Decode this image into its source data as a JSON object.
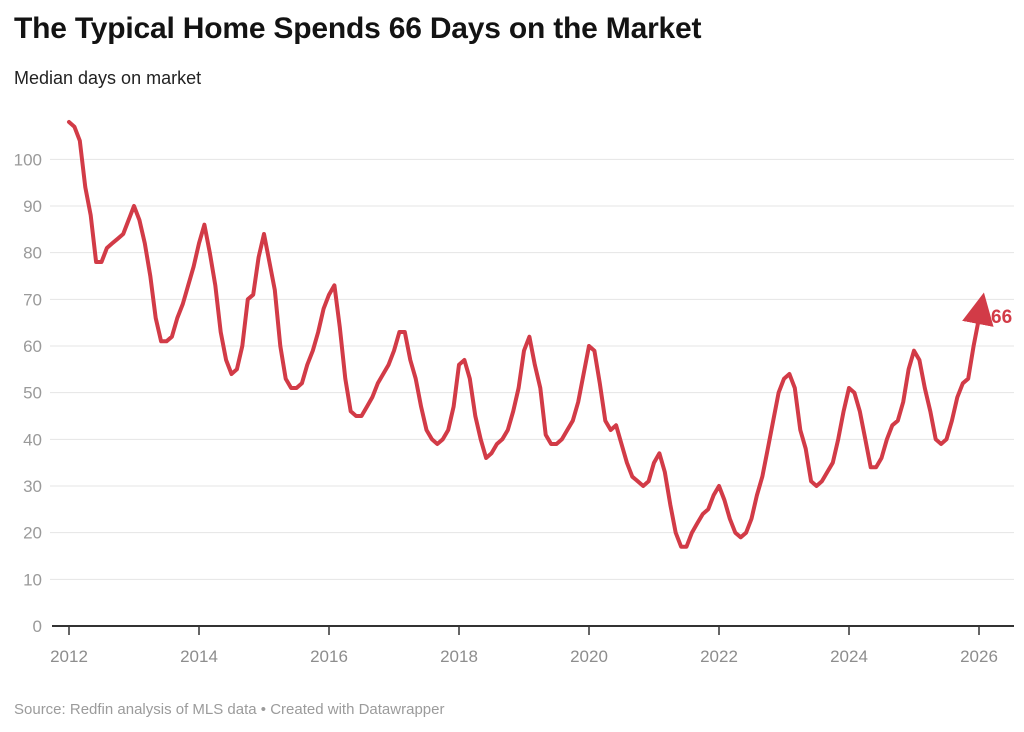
{
  "header": {
    "title": "The Typical Home Spends 66 Days on the Market",
    "subtitle": "Median days on market"
  },
  "footer": {
    "text": "Source: Redfin analysis of MLS data • Created with Datawrapper"
  },
  "chart_data": {
    "type": "line",
    "title": "The Typical Home Spends 66 Days on the Market",
    "ylabel": "Median days on market",
    "frequency": "monthly",
    "start": "2012-01",
    "end": "2026-01",
    "series": [
      {
        "name": "Median days on market",
        "values": [
          108,
          107,
          104,
          94,
          88,
          78,
          78,
          81,
          82,
          83,
          84,
          87,
          90,
          87,
          82,
          75,
          66,
          61,
          61,
          62,
          66,
          69,
          73,
          77,
          82,
          86,
          80,
          73,
          63,
          57,
          54,
          55,
          60,
          70,
          71,
          79,
          84,
          78,
          72,
          60,
          53,
          51,
          51,
          52,
          56,
          59,
          63,
          68,
          71,
          73,
          64,
          53,
          46,
          45,
          45,
          47,
          49,
          52,
          54,
          56,
          59,
          63,
          63,
          57,
          53,
          47,
          42,
          40,
          39,
          40,
          42,
          47,
          56,
          57,
          53,
          45,
          40,
          36,
          37,
          39,
          40,
          42,
          46,
          51,
          59,
          62,
          56,
          51,
          41,
          39,
          39,
          40,
          42,
          44,
          48,
          54,
          60,
          59,
          52,
          44,
          42,
          43,
          39,
          35,
          32,
          31,
          30,
          31,
          35,
          37,
          33,
          26,
          20,
          17,
          17,
          20,
          22,
          24,
          25,
          28,
          30,
          27,
          23,
          20,
          19,
          20,
          23,
          28,
          32,
          38,
          44,
          50,
          53,
          54,
          51,
          42,
          38,
          31,
          30,
          31,
          33,
          35,
          40,
          46,
          51,
          50,
          46,
          40,
          34,
          34,
          36,
          40,
          43,
          44,
          48,
          55,
          59,
          57,
          51,
          46,
          40,
          39,
          40,
          44,
          49,
          52,
          53,
          60,
          66
        ]
      }
    ],
    "x_tick_labels": [
      "2012",
      "2014",
      "2016",
      "2018",
      "2020",
      "2022",
      "2024",
      "2026"
    ],
    "y_ticks": [
      0,
      10,
      20,
      30,
      40,
      50,
      60,
      70,
      80,
      90,
      100
    ],
    "ylim": [
      0,
      110
    ],
    "grid": "horizontal",
    "legend": "none",
    "end_label": "66",
    "line_color": "#d23b47",
    "grid_color": "#e4e4e4",
    "axis_color": "#333333",
    "label_color": "#9a9a9a"
  }
}
